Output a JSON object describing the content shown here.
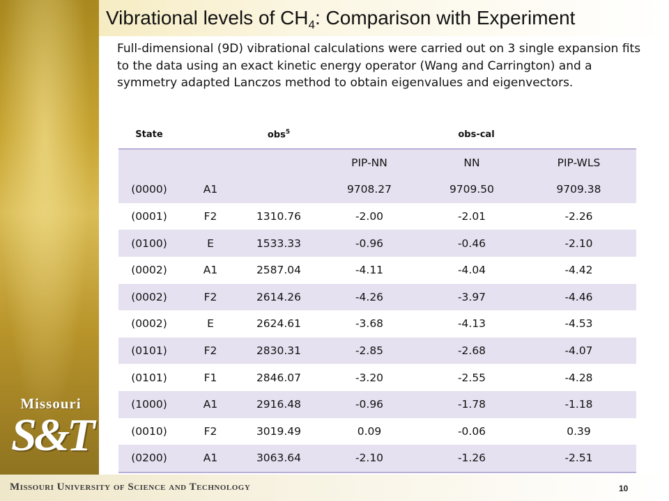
{
  "slide": {
    "title_main": "Vibrational levels of CH",
    "title_sub": "4",
    "title_rest": ": Comparison with Experiment",
    "intro": "Full-dimensional (9D) vibrational calculations were carried out on 3 single expansion fits to the data using an exact kinetic energy operator (Wang and Carrington) and a symmetry adapted Lanczos method to obtain eigenvalues and eigenvectors.",
    "page_number": "10"
  },
  "logo": {
    "wordmark": "Missouri",
    "monogram": "S&T"
  },
  "footer": {
    "text": "Missouri University of Science and Technology"
  },
  "table": {
    "header": {
      "state": "State",
      "obs": "obs",
      "obs_sup": "5",
      "obs_cal": "obs-cal"
    },
    "subheader": {
      "pip_nn": "PIP-NN",
      "nn": "NN",
      "pip_wls": "PIP-WLS"
    },
    "rows": [
      {
        "state": "(0000)",
        "sym": "A1",
        "obs": "",
        "pip_nn": "9708.27",
        "nn": "9709.50",
        "pip_wls": "9709.38"
      },
      {
        "state": "(0001)",
        "sym": "F2",
        "obs": "1310.76",
        "pip_nn": "-2.00",
        "nn": "-2.01",
        "pip_wls": "-2.26"
      },
      {
        "state": "(0100)",
        "sym": "E",
        "obs": "1533.33",
        "pip_nn": "-0.96",
        "nn": "-0.46",
        "pip_wls": "-2.10"
      },
      {
        "state": "(0002)",
        "sym": "A1",
        "obs": "2587.04",
        "pip_nn": "-4.11",
        "nn": "-4.04",
        "pip_wls": "-4.42"
      },
      {
        "state": "(0002)",
        "sym": "F2",
        "obs": "2614.26",
        "pip_nn": "-4.26",
        "nn": "-3.97",
        "pip_wls": "-4.46"
      },
      {
        "state": "(0002)",
        "sym": "E",
        "obs": "2624.61",
        "pip_nn": "-3.68",
        "nn": "-4.13",
        "pip_wls": "-4.53"
      },
      {
        "state": "(0101)",
        "sym": "F2",
        "obs": "2830.31",
        "pip_nn": "-2.85",
        "nn": "-2.68",
        "pip_wls": "-4.07"
      },
      {
        "state": "(0101)",
        "sym": "F1",
        "obs": "2846.07",
        "pip_nn": "-3.20",
        "nn": "-2.55",
        "pip_wls": "-4.28"
      },
      {
        "state": "(1000)",
        "sym": "A1",
        "obs": "2916.48",
        "pip_nn": "-0.96",
        "nn": "-1.78",
        "pip_wls": "-1.18"
      },
      {
        "state": "(0010)",
        "sym": "F2",
        "obs": "3019.49",
        "pip_nn": "0.09",
        "nn": "-0.06",
        "pip_wls": "0.39"
      },
      {
        "state": "(0200)",
        "sym": "A1",
        "obs": "3063.64",
        "pip_nn": "-2.10",
        "nn": "-1.26",
        "pip_wls": "-2.51"
      }
    ]
  }
}
